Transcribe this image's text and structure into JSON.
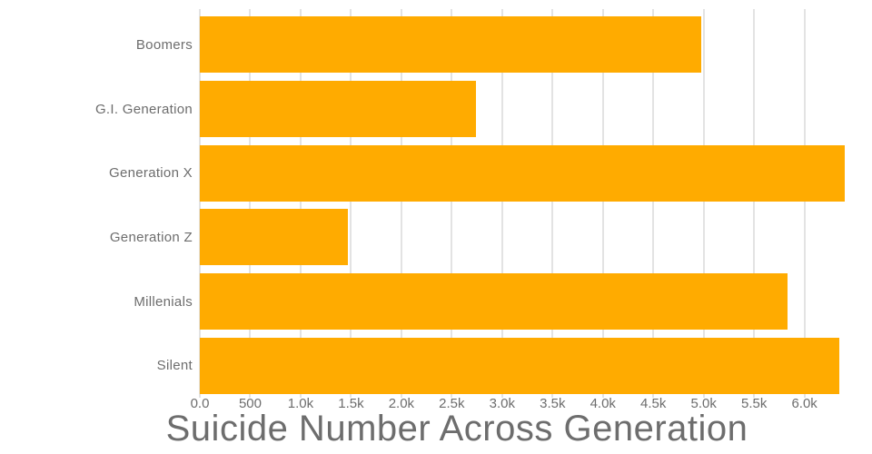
{
  "chart_data": {
    "type": "bar",
    "orientation": "horizontal",
    "title": "Suicide Number Across Generation",
    "categories": [
      "Boomers",
      "G.I. Generation",
      "Generation X",
      "Generation Z",
      "Millenials",
      "Silent"
    ],
    "values": [
      4980,
      2740,
      6400,
      1470,
      5830,
      6350
    ],
    "xlabel": "",
    "ylabel": "",
    "xlim": [
      0,
      6400
    ],
    "xticks": [
      {
        "value": 0,
        "label": "0.0"
      },
      {
        "value": 500,
        "label": "500"
      },
      {
        "value": 1000,
        "label": "1.0k"
      },
      {
        "value": 1500,
        "label": "1.5k"
      },
      {
        "value": 2000,
        "label": "2.0k"
      },
      {
        "value": 2500,
        "label": "2.5k"
      },
      {
        "value": 3000,
        "label": "3.0k"
      },
      {
        "value": 3500,
        "label": "3.5k"
      },
      {
        "value": 4000,
        "label": "4.0k"
      },
      {
        "value": 4500,
        "label": "4.5k"
      },
      {
        "value": 5000,
        "label": "5.0k"
      },
      {
        "value": 5500,
        "label": "5.5k"
      },
      {
        "value": 6000,
        "label": "6.0k"
      }
    ],
    "grid": true,
    "legend": false,
    "colors": {
      "bar": "#ffab00",
      "grid": "#e3e3e3",
      "text": "#6d6d6d",
      "background": "#ffffff"
    }
  }
}
